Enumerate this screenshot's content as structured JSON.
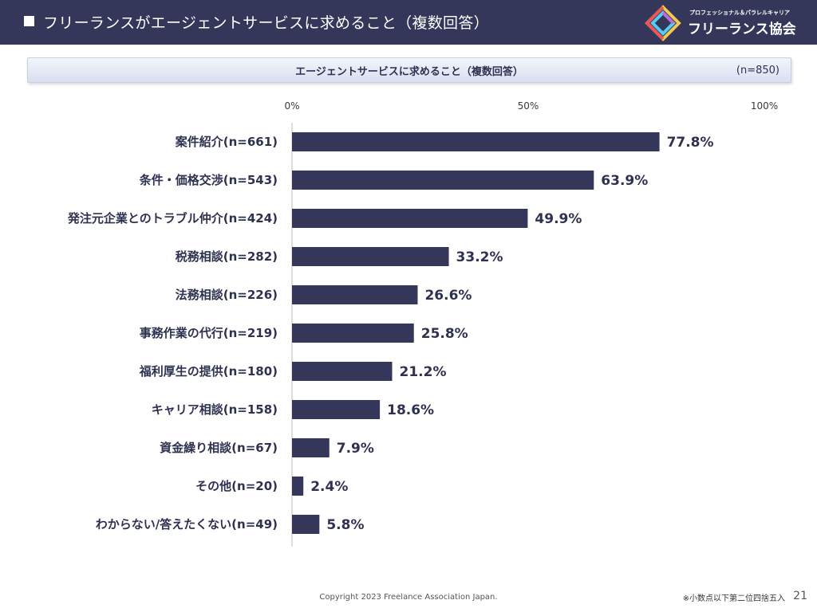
{
  "header": {
    "title": "フリーランスがエージェントサービスに求めること（複数回答）",
    "logo_sub": "プロフェッショナル＆パラレルキャリア",
    "logo_name": "フリーランス協会"
  },
  "banner": {
    "title": "エージェントサービスに求めること（複数回答）",
    "n": "(n=850)"
  },
  "chart_data": {
    "type": "bar",
    "orientation": "horizontal",
    "categories": [
      "案件紹介(n=661)",
      "条件・価格交渉(n=543)",
      "発注元企業とのトラブル仲介(n=424)",
      "税務相談(n=282)",
      "法務相談(n=226)",
      "事務作業の代行(n=219)",
      "福利厚生の提供(n=180)",
      "キャリア相談(n=158)",
      "資金繰り相談(n=67)",
      "その他(n=20)",
      "わからない/答えたくない(n=49)"
    ],
    "values": [
      77.8,
      63.9,
      49.9,
      33.2,
      26.6,
      25.8,
      21.2,
      18.6,
      7.9,
      2.4,
      5.8
    ],
    "value_labels": [
      "77.8%",
      "63.9%",
      "49.9%",
      "33.2%",
      "26.6%",
      "25.8%",
      "21.2%",
      "18.6%",
      "7.9%",
      "2.4%",
      "5.8%"
    ],
    "x_ticks": [
      "0%",
      "50%",
      "100%"
    ],
    "tick_values": [
      0,
      50,
      100
    ],
    "xlim": [
      0,
      100
    ],
    "grid": false,
    "bar_color": "#34375a"
  },
  "footer": {
    "copyright": "Copyright 2023 Freelance Association Japan.",
    "note": "※小数点以下第二位四捨五入",
    "page": "21"
  }
}
